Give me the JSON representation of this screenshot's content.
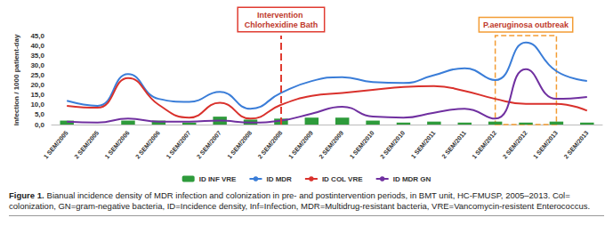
{
  "chart_data": {
    "type": "line",
    "categories": [
      "1 SEM/2005",
      "2 SEM/2005",
      "1 SEM/2006",
      "2 SEM/2006",
      "1 SEM/2007",
      "2 SEM/2007",
      "1 SEM/2008",
      "2 SEM/2008",
      "1 SEM/2009",
      "2 SEM/2009",
      "1 SEM/2010",
      "2 SEM/2010",
      "1 SEM/2011",
      "2 SEM/2011",
      "1 SEM/2012",
      "2 SEM/2012",
      "1 SEM/2013",
      "2 SEM/2013"
    ],
    "series": [
      {
        "name": "ID INF VRE",
        "type": "bar",
        "color": "#2e9b3b",
        "values": [
          2,
          0,
          2,
          2,
          1,
          4,
          2.5,
          3,
          3.5,
          3.5,
          2,
          1,
          1.5,
          1,
          1.5,
          1,
          1.5,
          1
        ]
      },
      {
        "name": "ID MDR",
        "type": "line",
        "color": "#3a7dd8",
        "values": [
          12,
          9.5,
          25.5,
          13,
          11.5,
          16.5,
          8,
          16,
          22,
          24,
          21.5,
          21,
          25,
          28.5,
          22.5,
          41.5,
          27,
          22
        ]
      },
      {
        "name": "ID COL VRE",
        "type": "line",
        "color": "#d9312c",
        "values": [
          9.5,
          8.5,
          23.5,
          10,
          3.5,
          11,
          3,
          10,
          14.5,
          16,
          17.5,
          19,
          19.5,
          17,
          13,
          10.5,
          10.5,
          7
        ]
      },
      {
        "name": "ID MDR GN",
        "type": "line",
        "color": "#7030a0",
        "values": [
          1.5,
          1,
          3,
          1.5,
          1.5,
          2,
          1,
          2,
          5.5,
          9,
          4,
          3.5,
          6,
          8,
          3,
          28,
          13,
          14
        ]
      }
    ],
    "y_label": "Infection / 1000 patient-day",
    "ylim": [
      0,
      45
    ],
    "yticks": [
      {
        "value": 0,
        "label": "0,0"
      },
      {
        "value": 5,
        "label": "5,0"
      },
      {
        "value": 10,
        "label": "10,0"
      },
      {
        "value": 15,
        "label": "15,0"
      },
      {
        "value": 20,
        "label": "20,0"
      },
      {
        "value": 25,
        "label": "25,0"
      },
      {
        "value": 30,
        "label": "30,0"
      },
      {
        "value": 35,
        "label": "35,0"
      },
      {
        "value": 40,
        "label": "40,0"
      },
      {
        "value": 45,
        "label": "45,0"
      }
    ],
    "grid": false,
    "legend": "bottom",
    "annotations": [
      {
        "text": "Intervention Chlorhexidine Bath",
        "x": "2 SEM/2008"
      },
      {
        "text": "P.aeruginosa outbreak",
        "x_from": "1 SEM/2012",
        "x_to": "1 SEM/2013"
      }
    ]
  },
  "caption": {
    "label": "Figure 1.",
    "text": "Bianual incidence density of MDR infection and colonization in pre- and postintervention periods, in BMT unit, HC-FMUSP, 2005–2013. Col= colonization, GN=gram-negative bacteria, ID=Incidence density, Inf=Infection, MDR=Multidrug-resistant bacteria, VRE=Vancomycin-resistent Enterococcus."
  }
}
